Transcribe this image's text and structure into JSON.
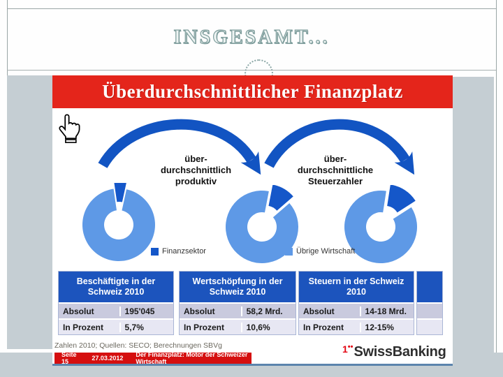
{
  "slide": {
    "title": "INSGESAMT..."
  },
  "banner": {
    "title": "Überdurchschnittlicher Finanzplatz"
  },
  "arrows": {
    "label_left": "über-\ndurchschnittlich\nproduktiv",
    "label_right": "über-\ndurchschnittliche\nSteuerzahler"
  },
  "legend": [
    {
      "label": "Finanzsektor",
      "color": "#1557c9"
    },
    {
      "label": "Übrige Wirtschaft",
      "color": "#5e99e6"
    }
  ],
  "tables": [
    {
      "title": "Beschäftigte in der Schweiz 2010",
      "rows": [
        {
          "label": "Absolut",
          "value": "195'045"
        },
        {
          "label": "In Prozent",
          "value": "5,7%"
        }
      ]
    },
    {
      "title": "Wertschöpfung in der Schweiz 2010",
      "rows": [
        {
          "label": "Absolut",
          "value": "58,2 Mrd."
        },
        {
          "label": "In Prozent",
          "value": "10,6%"
        }
      ]
    },
    {
      "title": "Steuern in der Schweiz 2010",
      "rows": [
        {
          "label": "Absolut",
          "value": "14-18 Mrd."
        },
        {
          "label": "In Prozent",
          "value": "12-15%"
        }
      ]
    }
  ],
  "source_note": "Zahlen 2010; Quellen: SECO; Berechnungen SBVg",
  "footer": {
    "page": "Seite 15",
    "date": "27.03.2012",
    "title": "Der Finanzplatz: Motor der Schweizer Wirtschaft"
  },
  "logo": {
    "prefix": "1",
    "dots": "••",
    "name": "SwissBanking",
    "accent": "#e30613"
  },
  "chart_data": [
    {
      "type": "pie",
      "donut": true,
      "title": "Beschäftigte in der Schweiz 2010",
      "labels": [
        "Finanzsektor",
        "Übrige Wirtschaft"
      ],
      "values": [
        5.7,
        94.3
      ],
      "unit": "%",
      "absolute_finanzsektor": "195'045",
      "legend_position": "bottom"
    },
    {
      "type": "pie",
      "donut": true,
      "title": "Wertschöpfung in der Schweiz 2010",
      "labels": [
        "Finanzsektor",
        "Übrige Wirtschaft"
      ],
      "values": [
        10.6,
        89.4
      ],
      "unit": "%",
      "absolute_finanzsektor": "58,2 Mrd.",
      "legend_position": "bottom"
    },
    {
      "type": "pie",
      "donut": true,
      "title": "Steuern in der Schweiz 2010",
      "labels": [
        "Finanzsektor",
        "Übrige Wirtschaft"
      ],
      "values": [
        13.5,
        86.5
      ],
      "unit": "%",
      "values_note": "Finanzsektor 12-15%",
      "absolute_finanzsektor": "14-18 Mrd.",
      "legend_position": "bottom"
    }
  ]
}
